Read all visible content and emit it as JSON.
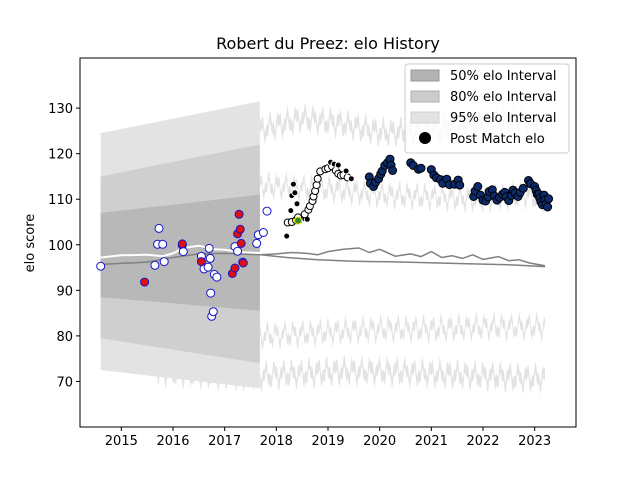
{
  "chart_data": {
    "type": "scatter",
    "title": "Robert du Preez: elo History",
    "xlabel": "",
    "ylabel": "elo score",
    "xlim": [
      2014.2,
      2023.8
    ],
    "ylim": [
      60,
      141
    ],
    "x_ticks": [
      "2015",
      "2016",
      "2017",
      "2018",
      "2019",
      "2020",
      "2021",
      "2022",
      "2023"
    ],
    "y_ticks": [
      "70",
      "80",
      "90",
      "100",
      "110",
      "120",
      "130"
    ],
    "legend": {
      "placement": "top-right",
      "items": [
        {
          "label": "50% elo Interval",
          "color": "#b3b3b3"
        },
        {
          "label": "80% elo Interval",
          "color": "#cccccc"
        },
        {
          "label": "95% elo Interval",
          "color": "#e3e3e3"
        },
        {
          "label": "Post Match elo",
          "color": "#000000"
        }
      ]
    },
    "colors": {
      "band_50": "#b8b8b8",
      "band_80": "#cfcfcf",
      "band_95": "#e3e3e3",
      "trend_line": "#ffffff",
      "rating_line": "#808080",
      "early_fill": "#ffffff",
      "early_edge": "#1515c8",
      "red_fill": "#e01010",
      "late_fill": "#0d2a6b",
      "mid_fill_black": "#000000",
      "mid_fill_white": "#ffffff",
      "highlight_fill": "#2e8b1e"
    },
    "early_band": {
      "x_start": 2014.6,
      "x_end": 2017.68,
      "b95": [
        [
          2014.6,
          72.5,
          124.5
        ],
        [
          2017.68,
          68.5,
          131.5
        ]
      ],
      "b80": [
        [
          2014.6,
          79.5,
          115.0
        ],
        [
          2017.68,
          74.0,
          122.0
        ]
      ],
      "b50": [
        [
          2014.6,
          88.5,
          107.0
        ],
        [
          2017.68,
          85.5,
          111.0
        ]
      ]
    },
    "late_bands": {
      "x_start": 2015.7,
      "x_end": 2023.2,
      "upper95": [
        [
          2015.7,
          123.5
        ],
        [
          2016.5,
          124
        ],
        [
          2017.0,
          125
        ],
        [
          2017.7,
          126.5
        ],
        [
          2018.5,
          129
        ],
        [
          2019.2,
          128
        ],
        [
          2020.0,
          126
        ],
        [
          2021.0,
          126
        ],
        [
          2022.0,
          128
        ],
        [
          2022.8,
          128.5
        ],
        [
          2023.2,
          127
        ]
      ],
      "upper80": [
        [
          2015.7,
          114.5
        ],
        [
          2016.5,
          114
        ],
        [
          2017.0,
          114
        ],
        [
          2017.7,
          114
        ],
        [
          2018.5,
          113.5
        ],
        [
          2019.2,
          113
        ],
        [
          2020.0,
          112
        ],
        [
          2021.0,
          111.5
        ],
        [
          2022.0,
          111
        ],
        [
          2022.8,
          112
        ],
        [
          2023.2,
          111
        ]
      ],
      "lower80": [
        [
          2015.7,
          79.5
        ],
        [
          2016.5,
          79
        ],
        [
          2017.0,
          79
        ],
        [
          2017.7,
          79
        ],
        [
          2018.5,
          79.5
        ],
        [
          2019.2,
          80
        ],
        [
          2020.0,
          80.5
        ],
        [
          2021.0,
          80.5
        ],
        [
          2022.0,
          81
        ],
        [
          2022.8,
          81
        ],
        [
          2023.2,
          81
        ]
      ],
      "lower95": [
        [
          2015.7,
          71
        ],
        [
          2016.5,
          70.5
        ],
        [
          2017.0,
          70
        ],
        [
          2017.7,
          70
        ],
        [
          2018.5,
          70.5
        ],
        [
          2019.2,
          71
        ],
        [
          2020.0,
          71
        ],
        [
          2021.0,
          70.5
        ],
        [
          2022.0,
          70
        ],
        [
          2022.8,
          69.5
        ],
        [
          2023.2,
          69.5
        ]
      ]
    },
    "series": [
      {
        "name": "Post Match elo",
        "group": "early",
        "points": [
          [
            2014.6,
            95.3
          ],
          [
            2015.65,
            95.5
          ],
          [
            2015.7,
            100.1
          ],
          [
            2015.73,
            103.6
          ],
          [
            2015.8,
            100.1
          ],
          [
            2015.83,
            96.3
          ],
          [
            2016.18,
            99.9
          ],
          [
            2016.2,
            98.5
          ],
          [
            2016.55,
            97.5
          ],
          [
            2016.6,
            94.7
          ],
          [
            2016.68,
            95.1
          ],
          [
            2016.7,
            99.2
          ],
          [
            2016.72,
            97.0
          ],
          [
            2016.73,
            89.4
          ],
          [
            2016.75,
            84.3
          ],
          [
            2016.78,
            85.3
          ],
          [
            2016.8,
            93.5
          ],
          [
            2016.85,
            92.9
          ],
          [
            2017.2,
            99.6
          ],
          [
            2017.25,
            98.6
          ],
          [
            2017.35,
            96.2
          ],
          [
            2017.62,
            100.3
          ],
          [
            2017.65,
            102.2
          ],
          [
            2017.75,
            102.7
          ],
          [
            2017.82,
            107.4
          ]
        ]
      },
      {
        "name": "Post Match elo",
        "group": "red",
        "points": [
          [
            2015.45,
            91.8
          ],
          [
            2016.18,
            100.2
          ],
          [
            2016.55,
            96.3
          ],
          [
            2017.15,
            93.7
          ],
          [
            2017.2,
            94.9
          ],
          [
            2017.25,
            102.4
          ],
          [
            2017.28,
            106.7
          ],
          [
            2017.3,
            103.4
          ],
          [
            2017.32,
            100.3
          ],
          [
            2017.36,
            96.0
          ]
        ]
      },
      {
        "name": "Post Match elo",
        "group": "mid_black",
        "points": [
          [
            2018.2,
            101.9
          ],
          [
            2018.22,
            104.9
          ],
          [
            2018.28,
            107.5
          ],
          [
            2018.3,
            110.8
          ],
          [
            2018.33,
            113.3
          ],
          [
            2018.36,
            111.4
          ],
          [
            2018.4,
            109.0
          ],
          [
            2018.45,
            105.2
          ],
          [
            2018.55,
            105.7
          ],
          [
            2018.6,
            105.6
          ]
        ]
      },
      {
        "name": "Post Match elo",
        "group": "mid_white",
        "points": [
          [
            2018.22,
            104.9
          ],
          [
            2018.3,
            105.0
          ],
          [
            2018.38,
            105.4
          ],
          [
            2018.42,
            106.0
          ],
          [
            2018.55,
            106.7
          ],
          [
            2018.62,
            107.7
          ],
          [
            2018.65,
            108.5
          ],
          [
            2018.7,
            109.6
          ],
          [
            2018.72,
            110.6
          ],
          [
            2018.75,
            111.8
          ],
          [
            2018.78,
            113.1
          ],
          [
            2018.8,
            114.5
          ],
          [
            2018.85,
            116.1
          ],
          [
            2018.95,
            116.6
          ],
          [
            2019.0,
            116.8
          ],
          [
            2019.08,
            117.2
          ],
          [
            2019.15,
            116.3
          ],
          [
            2019.2,
            115.6
          ],
          [
            2019.25,
            115.2
          ],
          [
            2019.3,
            115.3
          ],
          [
            2019.38,
            114.8
          ]
        ]
      },
      {
        "name": "Post Match elo",
        "group": "mid_late",
        "points": [
          [
            2019.05,
            118.1
          ],
          [
            2019.12,
            117.7
          ],
          [
            2019.2,
            117.5
          ],
          [
            2019.35,
            116.2
          ],
          [
            2019.45,
            114.5
          ]
        ]
      },
      {
        "name": "Post Match elo",
        "group": "highlight",
        "points": [
          [
            2018.42,
            105.3
          ]
        ]
      },
      {
        "name": "Post Match elo",
        "group": "late",
        "points": [
          [
            2019.8,
            114.9
          ],
          [
            2019.82,
            113.5
          ],
          [
            2019.88,
            112.8
          ],
          [
            2019.92,
            113.7
          ],
          [
            2019.98,
            114.5
          ],
          [
            2020.02,
            115.5
          ],
          [
            2020.05,
            116.2
          ],
          [
            2020.1,
            117.4
          ],
          [
            2020.15,
            118.0
          ],
          [
            2020.2,
            118.8
          ],
          [
            2020.22,
            117.5
          ],
          [
            2020.25,
            116.3
          ],
          [
            2020.6,
            118.0
          ],
          [
            2020.65,
            117.4
          ],
          [
            2020.75,
            116.6
          ],
          [
            2020.8,
            116.8
          ],
          [
            2021.0,
            116.5
          ],
          [
            2021.05,
            115.3
          ],
          [
            2021.1,
            114.7
          ],
          [
            2021.18,
            114.3
          ],
          [
            2021.22,
            113.5
          ],
          [
            2021.3,
            114.4
          ],
          [
            2021.35,
            113.2
          ],
          [
            2021.45,
            113.3
          ],
          [
            2021.52,
            114.2
          ],
          [
            2021.55,
            113.1
          ],
          [
            2021.82,
            110.6
          ],
          [
            2021.85,
            111.8
          ],
          [
            2021.9,
            112.8
          ],
          [
            2021.95,
            110.9
          ],
          [
            2022.0,
            109.8
          ],
          [
            2022.05,
            109.6
          ],
          [
            2022.1,
            110.5
          ],
          [
            2022.12,
            111.7
          ],
          [
            2022.18,
            112.1
          ],
          [
            2022.22,
            110.7
          ],
          [
            2022.27,
            109.8
          ],
          [
            2022.32,
            110.4
          ],
          [
            2022.38,
            111.1
          ],
          [
            2022.42,
            111.5
          ],
          [
            2022.45,
            110.5
          ],
          [
            2022.5,
            109.7
          ],
          [
            2022.55,
            110.8
          ],
          [
            2022.58,
            112.0
          ],
          [
            2022.62,
            111.4
          ],
          [
            2022.68,
            110.6
          ],
          [
            2022.72,
            111.5
          ],
          [
            2022.78,
            112.4
          ],
          [
            2022.88,
            114.1
          ],
          [
            2022.92,
            113.4
          ],
          [
            2023.0,
            112.8
          ],
          [
            2023.03,
            111.9
          ],
          [
            2023.05,
            111.1
          ],
          [
            2023.08,
            111.1
          ],
          [
            2023.1,
            110.2
          ],
          [
            2023.12,
            109.4
          ],
          [
            2023.15,
            108.8
          ],
          [
            2023.18,
            110.9
          ],
          [
            2023.2,
            109.9
          ],
          [
            2023.22,
            108.9
          ],
          [
            2023.25,
            108.3
          ],
          [
            2023.27,
            110.1
          ]
        ]
      }
    ],
    "trend_line": [
      [
        2014.6,
        95.7
      ],
      [
        2015.5,
        96.2
      ],
      [
        2016.0,
        97.2
      ],
      [
        2016.5,
        98.0
      ],
      [
        2017.0,
        98.1
      ],
      [
        2017.7,
        97.8
      ],
      [
        2018.2,
        97.2
      ],
      [
        2018.8,
        96.7
      ],
      [
        2019.5,
        96.4
      ],
      [
        2020.5,
        96.2
      ],
      [
        2021.5,
        95.9
      ],
      [
        2022.5,
        95.6
      ],
      [
        2023.2,
        95.2
      ]
    ],
    "white_line": [
      [
        2014.6,
        97.2
      ],
      [
        2015.0,
        97.7
      ],
      [
        2015.5,
        97.8
      ],
      [
        2015.8,
        97.5
      ],
      [
        2016.0,
        98.1
      ],
      [
        2016.2,
        99.3
      ],
      [
        2016.5,
        99.8
      ],
      [
        2016.8,
        99.0
      ],
      [
        2017.0,
        98.9
      ],
      [
        2017.3,
        98.4
      ],
      [
        2017.7,
        98.2
      ]
    ],
    "rating_line": [
      [
        2017.7,
        97.8
      ],
      [
        2018.0,
        98.0
      ],
      [
        2018.3,
        98.3
      ],
      [
        2018.6,
        98.1
      ],
      [
        2018.8,
        97.8
      ],
      [
        2019.0,
        98.5
      ],
      [
        2019.3,
        99.0
      ],
      [
        2019.6,
        99.3
      ],
      [
        2019.8,
        98.3
      ],
      [
        2020.0,
        99.0
      ],
      [
        2020.3,
        97.5
      ],
      [
        2020.6,
        98.0
      ],
      [
        2020.8,
        97.4
      ],
      [
        2021.0,
        98.5
      ],
      [
        2021.2,
        97.2
      ],
      [
        2021.4,
        97.6
      ],
      [
        2021.6,
        97.0
      ],
      [
        2021.8,
        97.8
      ],
      [
        2022.0,
        96.8
      ],
      [
        2022.3,
        97.4
      ],
      [
        2022.5,
        96.5
      ],
      [
        2022.7,
        96.7
      ],
      [
        2022.9,
        96.0
      ],
      [
        2023.2,
        95.4
      ]
    ]
  }
}
